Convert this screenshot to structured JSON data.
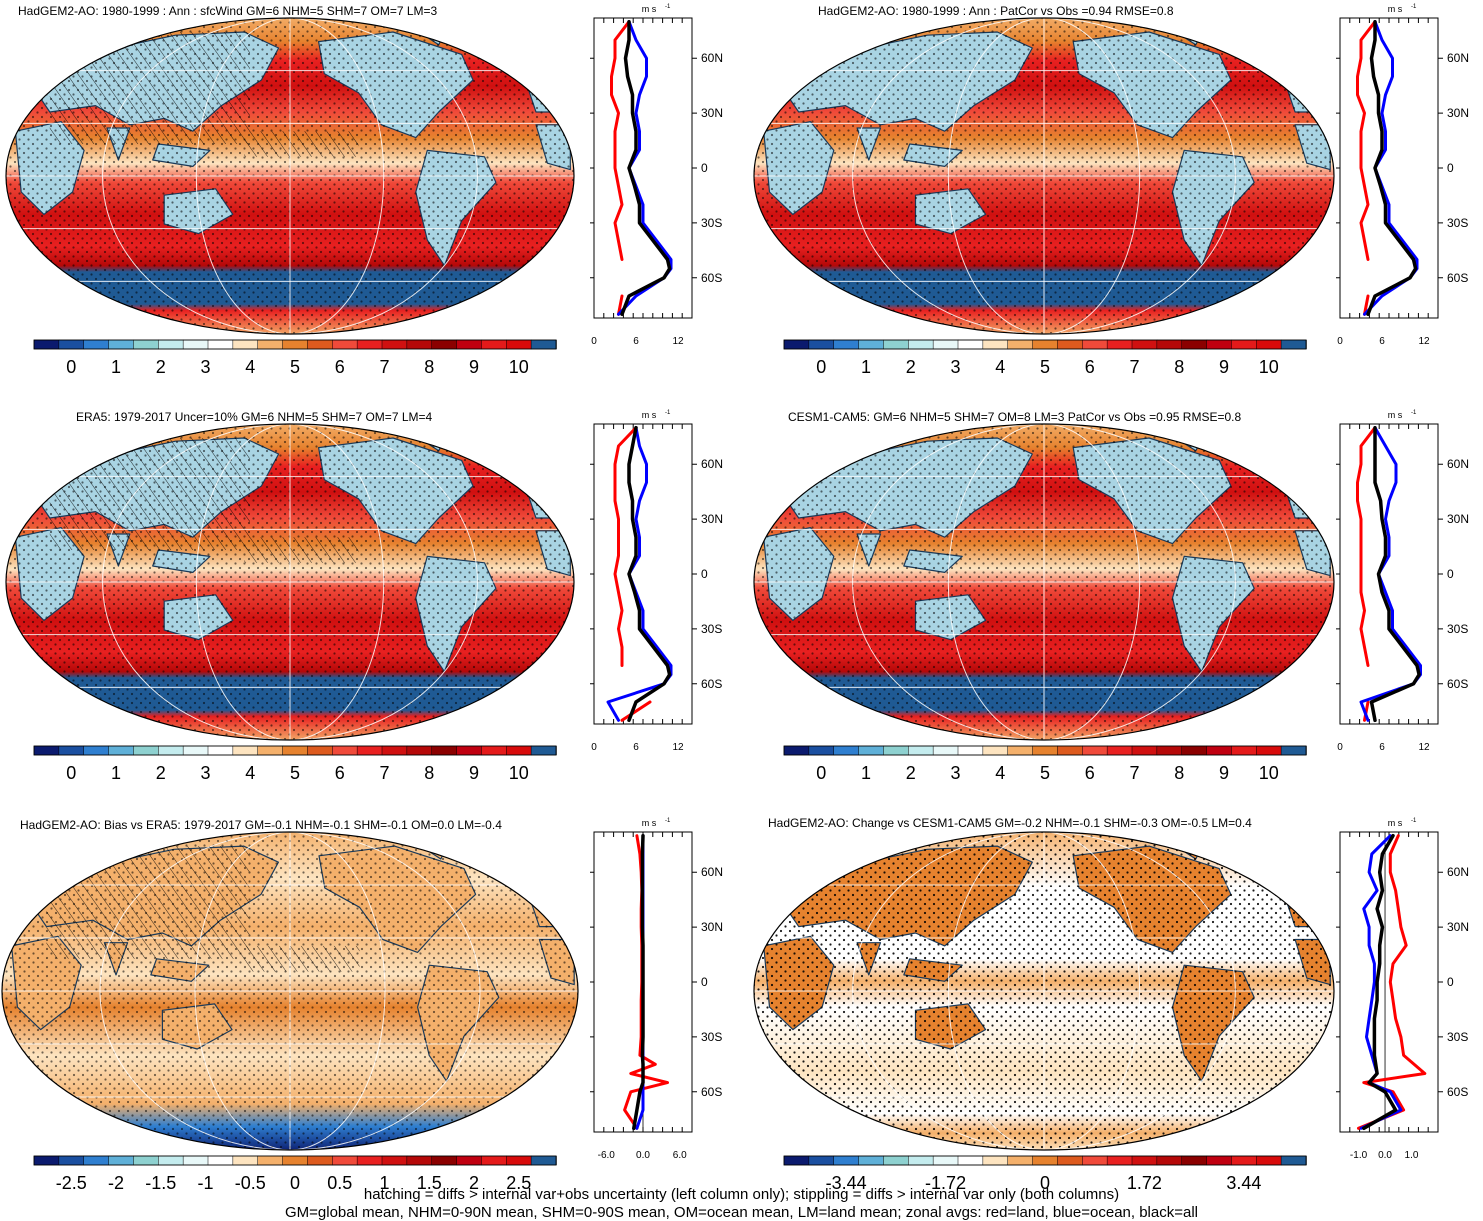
{
  "panels": [
    {
      "title": "HadGEM2-AO: 1980-1999 : Ann : sfcWind GM=6 NHM=5 SHM=7 OM=7 LM=3",
      "palette": "abs",
      "cbar_ticks": [
        "0",
        "1",
        "2",
        "3",
        "4",
        "5",
        "6",
        "7",
        "8",
        "9",
        "10"
      ],
      "zonal": {
        "units": "m s",
        "units_sup": "-1",
        "x_ticks": [
          "0",
          "6",
          "12"
        ],
        "y_ticks": [
          "60N",
          "30N",
          "0",
          "30S",
          "60S"
        ],
        "xlim": [
          0,
          14
        ],
        "lat": [
          80,
          70,
          60,
          50,
          40,
          30,
          20,
          10,
          0,
          -10,
          -20,
          -30,
          -40,
          -50,
          -55,
          -60,
          -70,
          -80
        ],
        "land": [
          5,
          3,
          3,
          2.5,
          2.5,
          3.5,
          3,
          3,
          3,
          3.5,
          4,
          3,
          3.5,
          4,
          null,
          null,
          4,
          3.5
        ],
        "ocean": [
          5,
          6,
          7.5,
          7.5,
          6.5,
          6,
          6.5,
          6.5,
          5,
          6,
          7,
          7,
          9,
          11,
          11,
          10,
          6,
          3.5
        ],
        "all": [
          5,
          5,
          4.5,
          4.8,
          5.5,
          5.5,
          6,
          6,
          5,
          5.8,
          6.5,
          6.5,
          8.5,
          10.5,
          10.8,
          10,
          5,
          4
        ]
      }
    },
    {
      "title": "HadGEM2-AO: 1980-1999 : Ann : PatCor vs Obs =0.94 RMSE=0.8",
      "palette": "abs",
      "cbar_ticks": [
        "0",
        "1",
        "2",
        "3",
        "4",
        "5",
        "6",
        "7",
        "8",
        "9",
        "10"
      ],
      "zonal": {
        "units": "m s",
        "units_sup": "-1",
        "x_ticks": [
          "0",
          "6",
          "12"
        ],
        "y_ticks": [
          "60N",
          "30N",
          "0",
          "30S",
          "60S"
        ],
        "xlim": [
          0,
          14
        ],
        "lat": [
          80,
          70,
          60,
          50,
          40,
          30,
          20,
          10,
          0,
          -10,
          -20,
          -30,
          -40,
          -50,
          -55,
          -60,
          -70,
          -80
        ],
        "land": [
          5,
          3,
          3,
          2.5,
          2.5,
          3.5,
          3,
          3,
          3,
          3.5,
          4,
          3,
          3.5,
          4,
          null,
          null,
          4,
          3.5
        ],
        "ocean": [
          5,
          6,
          7.5,
          7.5,
          6.5,
          6,
          6.5,
          6.5,
          5,
          6,
          7,
          7,
          9,
          11,
          11,
          10,
          6,
          3.5
        ],
        "all": [
          5,
          5,
          4.5,
          4.8,
          5.5,
          5.5,
          6,
          6,
          5,
          5.8,
          6.5,
          6.5,
          8.5,
          10.5,
          10.8,
          10,
          5,
          4
        ]
      }
    },
    {
      "title": "ERA5: 1979-2017 Uncer=10% GM=6 NHM=5 SHM=7 OM=7 LM=4",
      "palette": "abs",
      "cbar_ticks": [
        "0",
        "1",
        "2",
        "3",
        "4",
        "5",
        "6",
        "7",
        "8",
        "9",
        "10"
      ],
      "zonal": {
        "units": "m s",
        "units_sup": "-1",
        "x_ticks": [
          "0",
          "6",
          "12"
        ],
        "y_ticks": [
          "60N",
          "30N",
          "0",
          "30S",
          "60S"
        ],
        "xlim": [
          0,
          14
        ],
        "lat": [
          80,
          70,
          60,
          50,
          40,
          30,
          20,
          10,
          0,
          -10,
          -20,
          -30,
          -40,
          -50,
          -55,
          -60,
          -70,
          -80
        ],
        "land": [
          6,
          3.5,
          3,
          3,
          3,
          3.5,
          3.5,
          3.5,
          3,
          3.5,
          4,
          3.5,
          4,
          4,
          null,
          null,
          8,
          4
        ],
        "ocean": [
          6,
          6.5,
          7.5,
          7.5,
          6.5,
          6,
          6.5,
          6.5,
          5,
          6,
          7,
          7,
          9,
          11,
          11,
          10,
          2,
          3.5
        ],
        "all": [
          6,
          5.5,
          5,
          5,
          5.5,
          5.5,
          6,
          6,
          5,
          5.8,
          6.5,
          6.5,
          8.5,
          10.5,
          10.8,
          10,
          6,
          5
        ]
      }
    },
    {
      "title": "CESM1-CAM5: GM=6 NHM=5 SHM=7 OM=8 LM=3 PatCor vs Obs =0.95 RMSE=0.8",
      "palette": "abs",
      "cbar_ticks": [
        "0",
        "1",
        "2",
        "3",
        "4",
        "5",
        "6",
        "7",
        "8",
        "9",
        "10"
      ],
      "zonal": {
        "units": "m s",
        "units_sup": "-1",
        "x_ticks": [
          "0",
          "6",
          "12"
        ],
        "y_ticks": [
          "60N",
          "30N",
          "0",
          "30S",
          "60S"
        ],
        "xlim": [
          0,
          14
        ],
        "lat": [
          80,
          70,
          60,
          50,
          40,
          30,
          20,
          10,
          0,
          -10,
          -20,
          -30,
          -40,
          -50,
          -55,
          -60,
          -70,
          -80
        ],
        "land": [
          5,
          3,
          3,
          2.5,
          2.5,
          3,
          3,
          3,
          3,
          3,
          3.5,
          3,
          3.5,
          4,
          null,
          null,
          4,
          3.5
        ],
        "ocean": [
          5,
          6.5,
          8,
          8,
          7,
          6.5,
          7,
          7,
          5.5,
          6.5,
          7.5,
          7.5,
          9.5,
          11.5,
          11.5,
          10.5,
          3,
          4
        ],
        "all": [
          5,
          5,
          5,
          5,
          5.8,
          6,
          6.5,
          6.5,
          5.5,
          6,
          7,
          7,
          9,
          11,
          11.3,
          10.5,
          4.5,
          5
        ]
      }
    },
    {
      "title": "HadGEM2-AO: Bias vs ERA5: 1979-2017 GM=-0.1 NHM=-0.1 SHM=-0.1 OM=0.0 LM=-0.4",
      "palette": "diff",
      "cbar_ticks": [
        "-2.5",
        "-2",
        "-1.5",
        "-1",
        "-0.5",
        "0",
        "0.5",
        "1",
        "1.5",
        "2",
        "2.5"
      ],
      "zonal": {
        "units": "m s",
        "units_sup": "-1",
        "x_ticks": [
          "-6.0",
          "0.0",
          "6.0"
        ],
        "y_ticks": [
          "60N",
          "30N",
          "0",
          "30S",
          "60S"
        ],
        "xlim": [
          -8,
          8
        ],
        "lat": [
          80,
          70,
          60,
          50,
          40,
          30,
          20,
          10,
          0,
          -10,
          -20,
          -30,
          -40,
          -45,
          -50,
          -55,
          -60,
          -70,
          -80
        ],
        "land": [
          -1,
          -0.5,
          -0.3,
          -0.2,
          -0.3,
          -0.3,
          -0.2,
          -0.2,
          -0.2,
          -0.3,
          -0.3,
          -0.3,
          -0.5,
          2,
          -2,
          4,
          -2,
          -3,
          -1
        ],
        "ocean": [
          0,
          0,
          0,
          0,
          0,
          0,
          0,
          0,
          0,
          0,
          0,
          0,
          0,
          0,
          0,
          0,
          0,
          0,
          -1
        ],
        "all": [
          0,
          -0.1,
          -0.1,
          -0.1,
          -0.1,
          -0.1,
          0,
          0,
          0,
          0,
          0,
          0,
          -0.1,
          0,
          0,
          0,
          -0.5,
          -1,
          -1.5
        ]
      }
    },
    {
      "title": "HadGEM2-AO: Change vs CESM1-CAM5 GM=-0.2 NHM=-0.1 SHM=-0.3 OM=-0.5 LM=0.4",
      "palette": "diff",
      "cbar_ticks": [
        "-3.44",
        "-1.72",
        "0",
        "1.72",
        "3.44"
      ],
      "zonal": {
        "units": "m s",
        "units_sup": "-1",
        "x_ticks": [
          "-1.0",
          "0.0",
          "1.0"
        ],
        "y_ticks": [
          "60N",
          "30N",
          "0",
          "30S",
          "60S"
        ],
        "xlim": [
          -1.7,
          2.0
        ],
        "lat": [
          80,
          70,
          60,
          50,
          40,
          30,
          20,
          10,
          0,
          -10,
          -20,
          -30,
          -40,
          -50,
          -55,
          -60,
          -70,
          -80
        ],
        "land": [
          0.5,
          0.2,
          0.2,
          0.4,
          0.5,
          0.6,
          0.8,
          0.3,
          0.2,
          0.3,
          0.4,
          0.6,
          0.7,
          1.5,
          -0.8,
          0.3,
          0.7,
          -1.0
        ],
        "ocean": [
          0.2,
          -0.5,
          -0.6,
          -0.3,
          -0.8,
          -0.6,
          -0.6,
          -0.4,
          -0.4,
          -0.5,
          -0.6,
          -0.7,
          -0.5,
          -0.3,
          -0.6,
          0.2,
          0.6,
          -0.9
        ],
        "all": [
          0.3,
          -0.1,
          -0.2,
          -0.1,
          -0.3,
          -0.1,
          -0.2,
          -0.2,
          -0.3,
          -0.3,
          -0.4,
          -0.4,
          -0.4,
          -0.3,
          -0.6,
          0.0,
          0.4,
          -0.8
        ]
      }
    }
  ],
  "colors": {
    "land": "#ff0000",
    "ocean": "#0000ff",
    "all": "#000000",
    "abs_palette": [
      "#0b1a6e",
      "#1a4fa0",
      "#2f7fd0",
      "#5fb0d8",
      "#8ed1d0",
      "#c4ecee",
      "#e8f8f8",
      "#ffffff",
      "#fde4c0",
      "#f4b06b",
      "#e6822e",
      "#dd5a1e",
      "#f04a3a",
      "#e82020",
      "#d01010",
      "#b50808",
      "#8b0000",
      "#c00010",
      "#e41a1a",
      "#d80a0a",
      "#1f5a94"
    ],
    "diff_palette": [
      "#0b1a6e",
      "#1a4fa0",
      "#2f7fd0",
      "#5fb0d8",
      "#8ed1d0",
      "#c4ecee",
      "#e8f8f8",
      "#ffffff",
      "#fde4c0",
      "#f4b06b",
      "#e6822e",
      "#dd5a1e",
      "#f04a3a",
      "#e82020",
      "#d01010",
      "#b50808",
      "#8b0000",
      "#c00010",
      "#e41a1a",
      "#d80a0a",
      "#1f5a94"
    ]
  },
  "footnote": {
    "line1": "hatching = diffs > internal var+obs uncertainty (left column only); stippling = diffs > internal var only (both columns)",
    "line2": "GM=global mean, NHM=0-90N mean, SHM=0-90S mean, OM=ocean mean, LM=land mean; zonal avgs: red=land, blue=ocean, black=all"
  }
}
